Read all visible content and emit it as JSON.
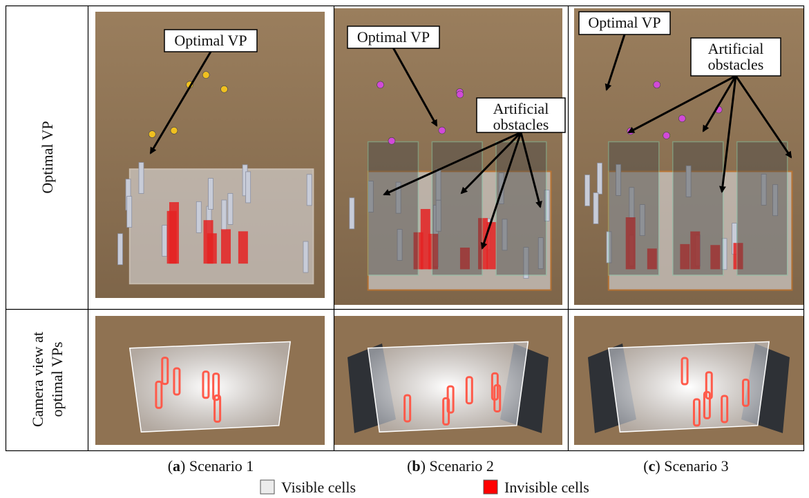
{
  "row_labels": [
    [
      "Optimal VP"
    ],
    [
      "Camera view at",
      "optimal VPs"
    ]
  ],
  "panels": [
    {
      "callouts": [
        [
          "Optimal VP"
        ]
      ]
    },
    {
      "callouts": [
        [
          "Optimal VP"
        ],
        [
          "Artificial",
          "obstacles"
        ]
      ]
    },
    {
      "callouts": [
        [
          "Optimal VP"
        ],
        [
          "Artificial",
          "obstacles"
        ]
      ]
    }
  ],
  "captions": [
    {
      "open": "(",
      "letter": "a",
      "rest": ") Scenario 1"
    },
    {
      "open": "(",
      "letter": "b",
      "rest": ") Scenario 2"
    },
    {
      "open": "(",
      "letter": "c",
      "rest": ") Scenario 3"
    }
  ],
  "legend": [
    "Visible cells",
    "Invisible cells"
  ]
}
